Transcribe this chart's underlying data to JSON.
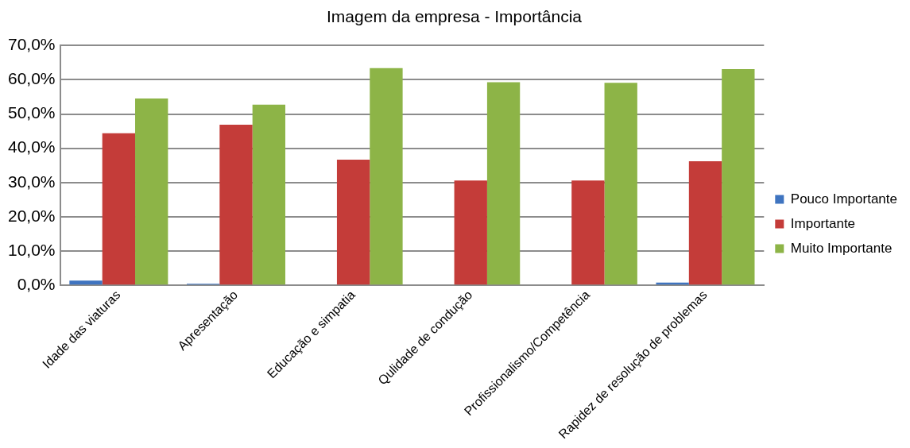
{
  "chart_data": {
    "type": "bar",
    "title": "Imagem da empresa - Importância",
    "categories": [
      "Idade das viaturas",
      "Apresentação",
      "Educação e simpatia",
      "Qulidade de condução",
      "Profissionalismo/Competência",
      "Rapidez de resolução de problemas"
    ],
    "series": [
      {
        "name": "Pouco Importante",
        "color": "#3f74c0",
        "values": [
          1.4,
          0.5,
          0,
          0,
          0,
          0.8
        ]
      },
      {
        "name": "Importante",
        "color": "#c43c39",
        "values": [
          44.4,
          46.9,
          36.7,
          30.6,
          30.6,
          36.2
        ]
      },
      {
        "name": "Muito Importante",
        "color": "#8db447",
        "values": [
          54.5,
          52.7,
          63.4,
          59.3,
          59.1,
          63.1
        ]
      }
    ],
    "ylim": [
      0,
      70
    ],
    "yticks": [
      {
        "value": 0,
        "label": "0,0%"
      },
      {
        "value": 10,
        "label": "10,0%"
      },
      {
        "value": 20,
        "label": "20,0%"
      },
      {
        "value": 30,
        "label": "30,0%"
      },
      {
        "value": 40,
        "label": "40,0%"
      },
      {
        "value": 50,
        "label": "50,0%"
      },
      {
        "value": 60,
        "label": "60,0%"
      },
      {
        "value": 70,
        "label": "70,0%"
      }
    ],
    "grid": "y",
    "legend": "right"
  }
}
